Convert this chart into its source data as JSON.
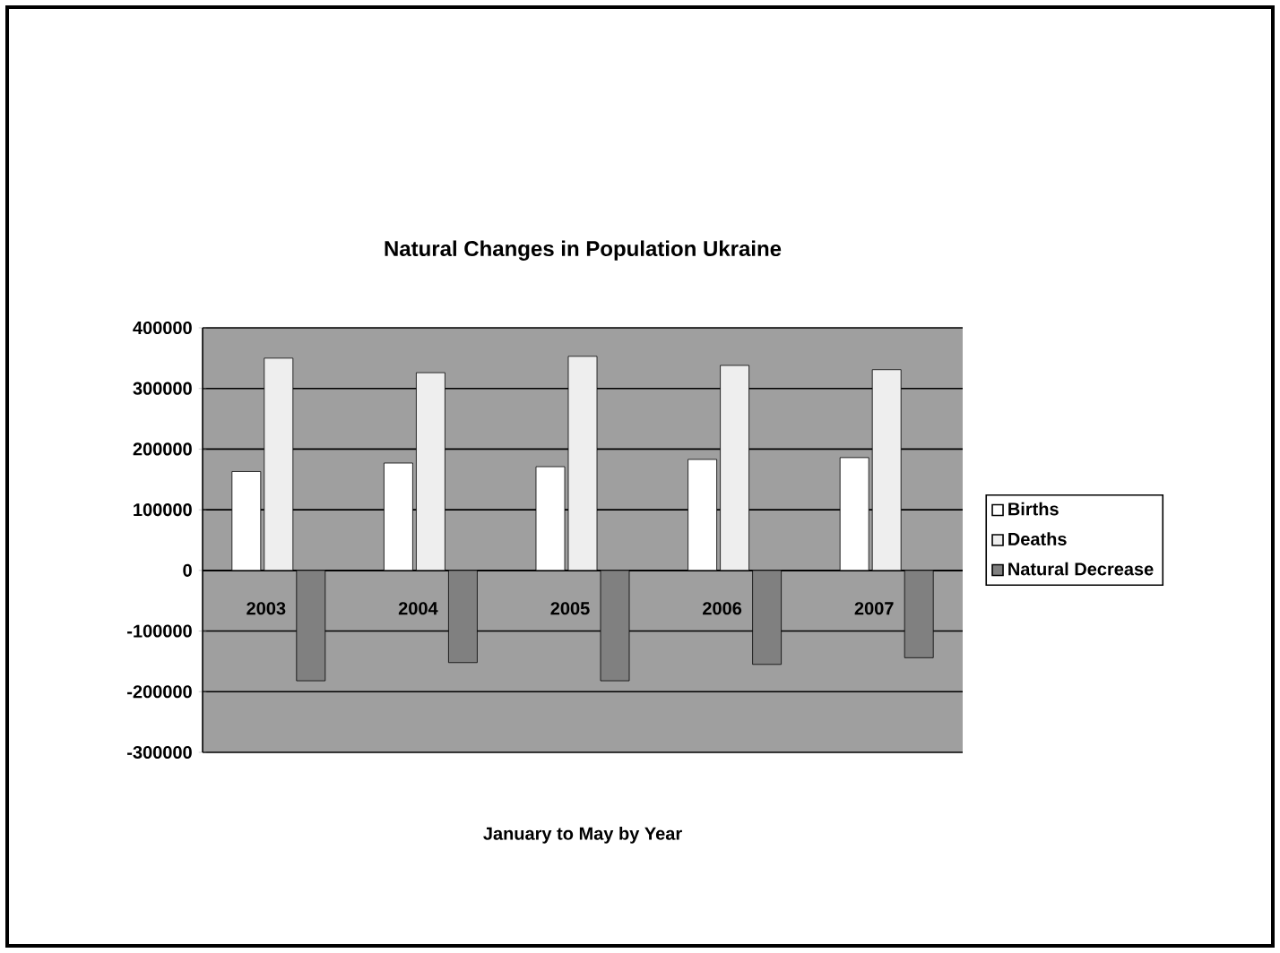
{
  "chart_data": {
    "type": "bar",
    "title": "Natural Changes in Population Ukraine",
    "xlabel": "January to May by Year",
    "categories": [
      "2003",
      "2004",
      "2005",
      "2006",
      "2007"
    ],
    "series": [
      {
        "name": "Births",
        "color": "#ffffff",
        "values": [
          163000,
          177000,
          171000,
          183000,
          186000
        ]
      },
      {
        "name": "Deaths",
        "color": "#eeeeee",
        "values": [
          350000,
          326000,
          353000,
          338000,
          331000
        ]
      },
      {
        "name": "Natural Decrease",
        "color": "#808080",
        "values": [
          -182000,
          -152000,
          -182000,
          -155000,
          -144000
        ]
      }
    ],
    "ylim": [
      -300000,
      400000
    ],
    "yticks": [
      -300000,
      -200000,
      -100000,
      0,
      100000,
      200000,
      300000,
      400000
    ],
    "grid": "y",
    "legend": "right"
  }
}
